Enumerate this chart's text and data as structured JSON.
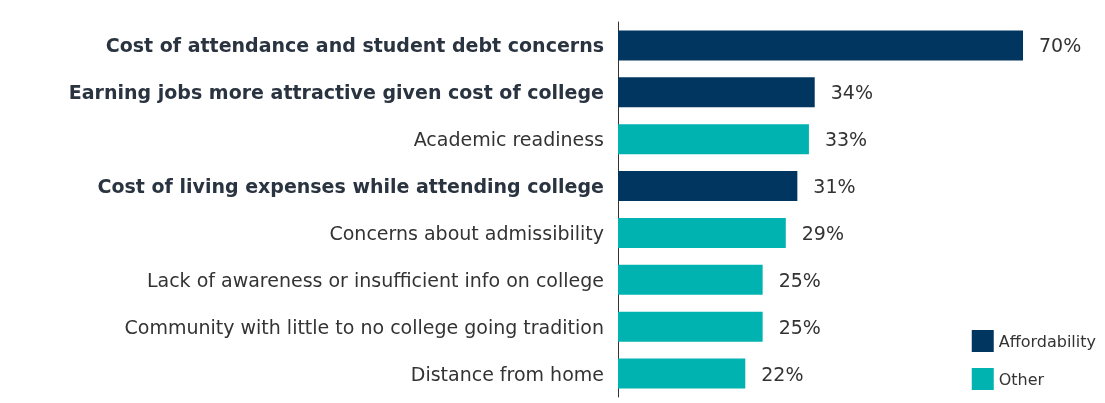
{
  "chart_data": {
    "type": "bar",
    "orientation": "horizontal",
    "categories": [
      "Cost of attendance and student debt concerns",
      "Earning jobs more attractive given cost of college",
      "Academic readiness",
      "Cost of living expenses while attending college",
      "Concerns about admissibility",
      "Lack of awareness or insufficient info on college",
      "Community with little to no college going tradition",
      "Distance from home"
    ],
    "series": [
      {
        "name": "Affordability",
        "color": "#00365f",
        "values": [
          70,
          34,
          null,
          31,
          null,
          null,
          null,
          null
        ],
        "value_labels": [
          "70%",
          "34%",
          null,
          "31%",
          null,
          null,
          null,
          null
        ]
      },
      {
        "name": "Other",
        "color": "#00b2b0",
        "values": [
          null,
          null,
          33,
          null,
          29,
          25,
          25,
          22
        ],
        "value_labels": [
          null,
          null,
          "33%",
          null,
          "29%",
          "25%",
          "25%",
          "22%"
        ]
      }
    ],
    "legend": "bottom right",
    "grid": false
  }
}
